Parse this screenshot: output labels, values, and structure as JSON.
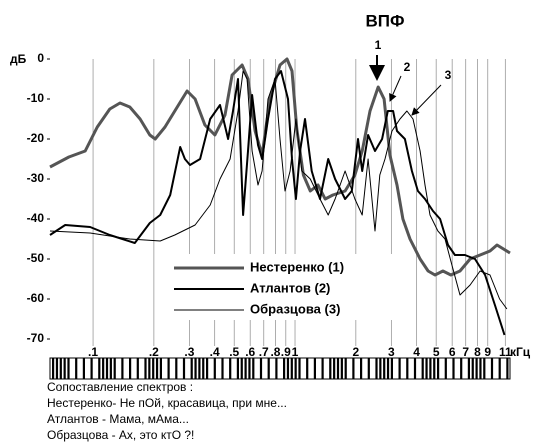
{
  "chart_data": {
    "type": "line",
    "title": "ВПФ",
    "y_label": "дБ",
    "x_label": "кГц",
    "log_x": true,
    "grid_x": true,
    "legend": "bottom-center",
    "xlim": [
      0.0612,
      11.6
    ],
    "ylim": [
      -70,
      0
    ],
    "xticks": [
      {
        "value": 0.1,
        "label": ".1"
      },
      {
        "value": 0.2,
        "label": ".2"
      },
      {
        "value": 0.3,
        "label": ".3"
      },
      {
        "value": 0.4,
        "label": ".4"
      },
      {
        "value": 0.5,
        "label": ".5"
      },
      {
        "value": 0.6,
        "label": ".6"
      },
      {
        "value": 0.7,
        "label": ".7"
      },
      {
        "value": 0.8,
        "label": ".8"
      },
      {
        "value": 0.9,
        "label": ".9"
      },
      1,
      2,
      3,
      4,
      5,
      6,
      7,
      8,
      9,
      11
    ],
    "yticks": [
      0,
      -10,
      -20,
      -30,
      -40,
      -50,
      -60,
      -70
    ],
    "annotations": [
      "1",
      "2",
      "3"
    ],
    "series": [
      {
        "name": "Нестеренко (1)",
        "color": "#555555",
        "line_width": 3,
        "x": [
          0.0612,
          0.0759,
          0.0914,
          0.105,
          0.121,
          0.136,
          0.152,
          0.171,
          0.191,
          0.203,
          0.227,
          0.254,
          0.292,
          0.32,
          0.358,
          0.401,
          0.45,
          0.488,
          0.547,
          0.585,
          0.634,
          0.687,
          0.752,
          0.843,
          0.913,
          0.966,
          1.02,
          1.1,
          1.19,
          1.3,
          1.41,
          1.54,
          1.77,
          1.98,
          2.15,
          2.35,
          2.58,
          2.76,
          2.95,
          3.2,
          3.42,
          3.71,
          4.16,
          4.56,
          4.93,
          5.4,
          5.91,
          6.56,
          7.36,
          8.25,
          9.23,
          10.0,
          11.6
        ],
        "values": [
          -27,
          -24.5,
          -23,
          -17,
          -12.5,
          -11,
          -12,
          -15,
          -19,
          -20,
          -17,
          -13,
          -8,
          -10,
          -16.5,
          -19,
          -14,
          -4,
          -1.5,
          -5,
          -18,
          -24,
          -10,
          -1.5,
          0,
          -3,
          -17.5,
          -29,
          -33,
          -31.5,
          -35,
          -34,
          -33,
          -29,
          -23,
          -13,
          -7,
          -10,
          -24,
          -31.5,
          -40,
          -45,
          -50,
          -53,
          -54,
          -53,
          -54,
          -53,
          -50,
          -49,
          -48,
          -46.5,
          -48.5
        ]
      },
      {
        "name": "Атлантов (2)",
        "color": "#000000",
        "line_width": 2,
        "x": [
          0.0612,
          0.0728,
          0.0967,
          0.121,
          0.161,
          0.191,
          0.215,
          0.241,
          0.27,
          0.285,
          0.302,
          0.339,
          0.38,
          0.425,
          0.466,
          0.493,
          0.522,
          0.553,
          0.585,
          0.613,
          0.656,
          0.687,
          0.735,
          0.796,
          0.852,
          0.923,
          0.966,
          1.01,
          1.06,
          1.12,
          1.21,
          1.33,
          1.46,
          1.58,
          1.77,
          1.91,
          2.05,
          2.15,
          2.3,
          2.49,
          2.7,
          2.88,
          3.06,
          3.2,
          3.5,
          3.79,
          4.06,
          4.4,
          4.82,
          5.23,
          5.72,
          6.19,
          6.94,
          7.78,
          8.73,
          9.77,
          10.9
        ],
        "values": [
          -44,
          -41.5,
          -42,
          -44,
          -46,
          -41,
          -39,
          -34,
          -22,
          -25,
          -26.5,
          -25,
          -15,
          -11.5,
          -20,
          -13,
          -5,
          -39,
          -23,
          -9,
          -21.5,
          -25,
          -15,
          -5,
          -3,
          -10,
          -25,
          -35,
          -23,
          -15,
          -28,
          -35,
          -25,
          -30,
          -35,
          -33,
          -20,
          -28,
          -19,
          -23,
          -20,
          -13,
          -13,
          -18,
          -20,
          -28,
          -33,
          -35,
          -38,
          -40,
          -46.5,
          -49,
          -49,
          -50,
          -54,
          -61.5,
          -69
        ]
      },
      {
        "name": "Образцова (3)",
        "color": "#000000",
        "line_width": 1,
        "x": [
          0.0612,
          0.0967,
          0.152,
          0.215,
          0.254,
          0.32,
          0.38,
          0.425,
          0.477,
          0.522,
          0.553,
          0.579,
          0.613,
          0.656,
          0.687,
          0.735,
          0.796,
          0.843,
          0.892,
          0.945,
          1.01,
          1.08,
          1.19,
          1.33,
          1.46,
          1.58,
          1.77,
          1.98,
          2.15,
          2.3,
          2.49,
          2.63,
          2.79,
          3.02,
          3.31,
          3.58,
          3.84,
          4.16,
          4.4,
          4.66,
          5.1,
          5.53,
          5.98,
          6.56,
          7.36,
          8.25,
          9.23,
          10.3,
          11.2
        ],
        "values": [
          -43,
          -43.5,
          -45,
          -45.5,
          -44,
          -41.5,
          -36.5,
          -30,
          -25,
          -13,
          -3,
          -5,
          -23,
          -31.5,
          -28,
          -10,
          -5,
          -20,
          -33,
          -28,
          -15,
          -28,
          -30,
          -35,
          -39,
          -35,
          -28,
          -35,
          -39,
          -25,
          -43,
          -29,
          -25,
          -18,
          -15,
          -13,
          -15,
          -23,
          -31.5,
          -39,
          -43,
          -45,
          -51.5,
          -59,
          -56.5,
          -53,
          -54,
          -60,
          -62.5
        ]
      }
    ],
    "caption": [
      "Сопоставление спектров :",
      "Нестеренко- Не пОй, красавица, при мне...",
      "Атлантов - Мама, мАма...",
      "Образцова - Ах, это ктО ?!"
    ]
  }
}
